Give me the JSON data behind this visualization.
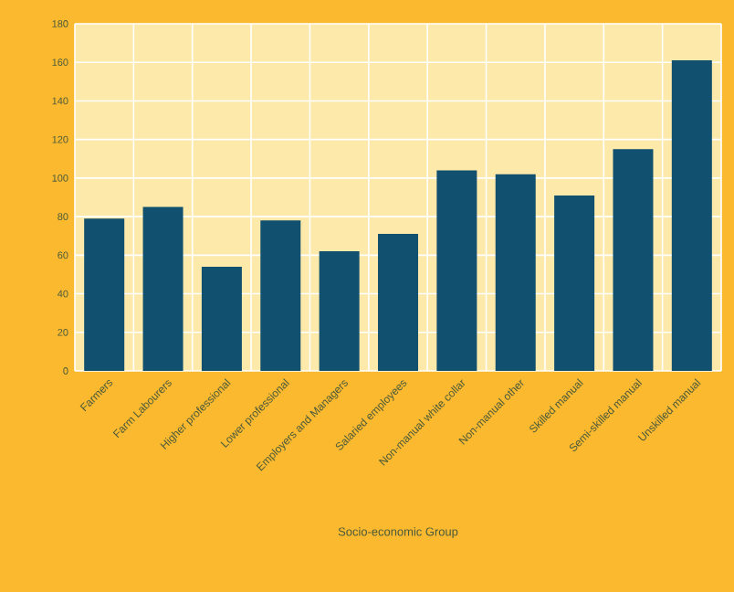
{
  "chart_data": {
    "type": "bar",
    "xlabel": "Socio-economic Group",
    "categories": [
      "Farmers",
      "Farm Labourers",
      "Higher professional",
      "Lower professional",
      "Employers and Managers",
      "Salaried employees",
      "Non-manual white collar",
      "Non-manual other",
      "Skilled manual",
      "Semi-skilled manual",
      "Unskilled manual"
    ],
    "values": [
      79,
      85,
      54,
      78,
      62,
      71,
      104,
      102,
      91,
      115,
      161
    ],
    "color": "#12506f",
    "ylim": [
      0,
      180
    ],
    "yticks": [
      0,
      20,
      40,
      60,
      80,
      100,
      120,
      140,
      160,
      180
    ],
    "grid": true
  }
}
